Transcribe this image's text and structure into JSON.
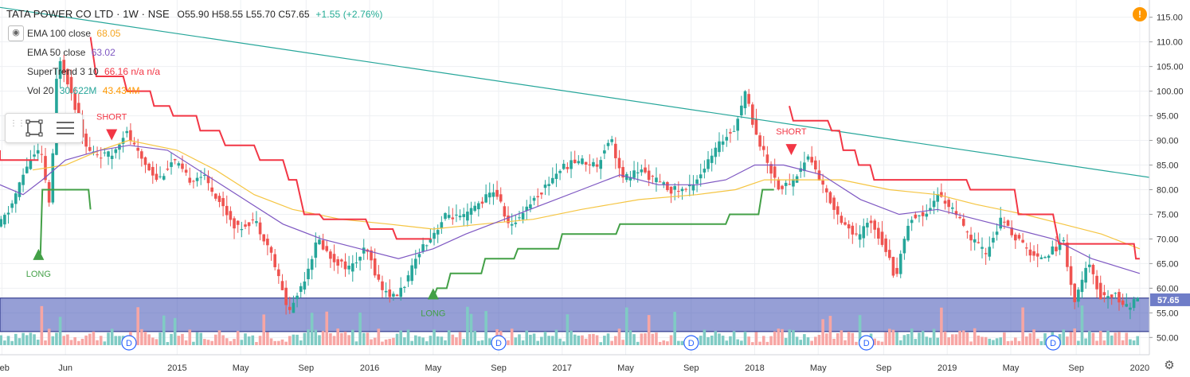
{
  "header": {
    "symbol": "TATA POWER CO LTD · 1W · NSE",
    "ohlc": "O55.90  H58.55  L55.70  C57.65",
    "change": "+1.55 (+2.76%)"
  },
  "indicators": [
    {
      "label": "EMA 100 close",
      "value": "68.05",
      "color": "#f5a623"
    },
    {
      "label": "EMA 50 close",
      "value": "63.02",
      "color": "#7e57c2"
    },
    {
      "label": "SuperTrend 3 10",
      "value": "66.16  n/a  n/a",
      "color": "#f23645"
    },
    {
      "label": "Vol 20",
      "value": "30.622M",
      "value2": "43.434M",
      "color": "#26a69a",
      "color2": "#ff9800"
    }
  ],
  "icons": {
    "alert": "!",
    "settings": "⚙",
    "visibility": "◉"
  },
  "colors": {
    "up": "#26a69a",
    "down": "#ef5350",
    "trendline": "#26a69a",
    "ema100": "#f5c542",
    "ema50": "#7e57c2",
    "st_down": "#f23645",
    "st_up": "#43a047",
    "zone": "#3f51b5",
    "vol_up": "#80cbc4",
    "vol_down": "#f7a6a4"
  },
  "chart_data": {
    "type": "candlestick",
    "title": "TATA POWER CO LTD · 1W · NSE",
    "ylim": [
      46.5,
      118.5
    ],
    "y_ticks": [
      50,
      55,
      60,
      65,
      70,
      75,
      80,
      85,
      90,
      95,
      100,
      105,
      110,
      115
    ],
    "y_tick_labels": [
      "50.00",
      "55.00",
      "60.00",
      "65.00",
      "70.00",
      "75.00",
      "80.00",
      "85.00",
      "90.00",
      "95.00",
      "100.00",
      "105.00",
      "110.00",
      "115.00"
    ],
    "x_range": [
      2014.08,
      2020.05
    ],
    "x_ticks": [
      {
        "x": 2014.09,
        "label": "Feb"
      },
      {
        "x": 2014.42,
        "label": "Jun"
      },
      {
        "x": 2015.0,
        "label": "2015"
      },
      {
        "x": 2015.33,
        "label": "May"
      },
      {
        "x": 2015.67,
        "label": "Sep"
      },
      {
        "x": 2016.0,
        "label": "2016"
      },
      {
        "x": 2016.33,
        "label": "May"
      },
      {
        "x": 2016.67,
        "label": "Sep"
      },
      {
        "x": 2017.0,
        "label": "2017"
      },
      {
        "x": 2017.33,
        "label": "May"
      },
      {
        "x": 2017.67,
        "label": "Sep"
      },
      {
        "x": 2018.0,
        "label": "2018"
      },
      {
        "x": 2018.33,
        "label": "May"
      },
      {
        "x": 2018.67,
        "label": "Sep"
      },
      {
        "x": 2019.0,
        "label": "2019"
      },
      {
        "x": 2019.33,
        "label": "May"
      },
      {
        "x": 2019.67,
        "label": "Sep"
      },
      {
        "x": 2020.0,
        "label": "2020"
      }
    ],
    "last_price": 57.65,
    "last_price_label": "57.65",
    "price_path": [
      [
        2014.08,
        72
      ],
      [
        2014.15,
        76
      ],
      [
        2014.25,
        86
      ],
      [
        2014.31,
        88
      ],
      [
        2014.36,
        76
      ],
      [
        2014.4,
        108
      ],
      [
        2014.46,
        101
      ],
      [
        2014.55,
        88
      ],
      [
        2014.62,
        87
      ],
      [
        2014.68,
        87
      ],
      [
        2014.75,
        92
      ],
      [
        2014.82,
        87
      ],
      [
        2014.92,
        82
      ],
      [
        2015.0,
        86
      ],
      [
        2015.08,
        82
      ],
      [
        2015.15,
        83
      ],
      [
        2015.25,
        77
      ],
      [
        2015.33,
        72
      ],
      [
        2015.42,
        74
      ],
      [
        2015.5,
        68
      ],
      [
        2015.6,
        55
      ],
      [
        2015.68,
        62
      ],
      [
        2015.75,
        70
      ],
      [
        2015.82,
        66
      ],
      [
        2015.92,
        64
      ],
      [
        2016.0,
        68
      ],
      [
        2016.08,
        60
      ],
      [
        2016.15,
        58
      ],
      [
        2016.22,
        62
      ],
      [
        2016.28,
        68
      ],
      [
        2016.33,
        70
      ],
      [
        2016.42,
        75
      ],
      [
        2016.5,
        74
      ],
      [
        2016.58,
        77
      ],
      [
        2016.67,
        80
      ],
      [
        2016.75,
        72
      ],
      [
        2016.82,
        76
      ],
      [
        2016.92,
        80
      ],
      [
        2017.0,
        84
      ],
      [
        2017.1,
        86
      ],
      [
        2017.2,
        85
      ],
      [
        2017.27,
        91
      ],
      [
        2017.33,
        82
      ],
      [
        2017.42,
        84
      ],
      [
        2017.5,
        82
      ],
      [
        2017.58,
        80
      ],
      [
        2017.67,
        80
      ],
      [
        2017.75,
        84
      ],
      [
        2017.85,
        90
      ],
      [
        2017.92,
        93
      ],
      [
        2017.97,
        100
      ],
      [
        2018.02,
        92
      ],
      [
        2018.08,
        86
      ],
      [
        2018.15,
        80
      ],
      [
        2018.22,
        82
      ],
      [
        2018.3,
        87
      ],
      [
        2018.38,
        80
      ],
      [
        2018.45,
        75
      ],
      [
        2018.55,
        70
      ],
      [
        2018.62,
        74
      ],
      [
        2018.7,
        68
      ],
      [
        2018.75,
        62
      ],
      [
        2018.82,
        74
      ],
      [
        2018.9,
        75
      ],
      [
        2018.97,
        79
      ],
      [
        2019.05,
        76
      ],
      [
        2019.12,
        71
      ],
      [
        2019.22,
        67
      ],
      [
        2019.3,
        74
      ],
      [
        2019.38,
        70
      ],
      [
        2019.48,
        66
      ],
      [
        2019.58,
        68
      ],
      [
        2019.62,
        70
      ],
      [
        2019.68,
        57
      ],
      [
        2019.75,
        65
      ],
      [
        2019.82,
        58
      ],
      [
        2019.88,
        59
      ],
      [
        2019.95,
        56
      ],
      [
        2020.0,
        57.65
      ]
    ],
    "ema100": [
      [
        2014.25,
        84
      ],
      [
        2014.42,
        85
      ],
      [
        2014.6,
        88
      ],
      [
        2014.75,
        90
      ],
      [
        2015.0,
        88
      ],
      [
        2015.2,
        84
      ],
      [
        2015.4,
        79
      ],
      [
        2015.6,
        76
      ],
      [
        2015.85,
        74
      ],
      [
        2016.1,
        73
      ],
      [
        2016.33,
        72
      ],
      [
        2016.58,
        73
      ],
      [
        2016.85,
        74
      ],
      [
        2017.1,
        76
      ],
      [
        2017.4,
        78
      ],
      [
        2017.7,
        79
      ],
      [
        2017.9,
        80
      ],
      [
        2018.05,
        82
      ],
      [
        2018.25,
        82
      ],
      [
        2018.45,
        82
      ],
      [
        2018.7,
        80
      ],
      [
        2018.95,
        79
      ],
      [
        2019.15,
        77
      ],
      [
        2019.4,
        75
      ],
      [
        2019.6,
        73
      ],
      [
        2019.8,
        71
      ],
      [
        2020.0,
        68
      ]
    ],
    "ema50": [
      [
        2014.08,
        81
      ],
      [
        2014.2,
        79
      ],
      [
        2014.3,
        82
      ],
      [
        2014.42,
        86
      ],
      [
        2014.6,
        88
      ],
      [
        2014.75,
        89
      ],
      [
        2014.95,
        88
      ],
      [
        2015.15,
        83
      ],
      [
        2015.35,
        78
      ],
      [
        2015.55,
        73
      ],
      [
        2015.75,
        70
      ],
      [
        2015.95,
        68
      ],
      [
        2016.15,
        66
      ],
      [
        2016.33,
        68
      ],
      [
        2016.5,
        71
      ],
      [
        2016.7,
        74
      ],
      [
        2016.9,
        77
      ],
      [
        2017.1,
        80
      ],
      [
        2017.3,
        83
      ],
      [
        2017.5,
        81
      ],
      [
        2017.7,
        81
      ],
      [
        2017.85,
        82
      ],
      [
        2018.0,
        85
      ],
      [
        2018.15,
        85
      ],
      [
        2018.35,
        83
      ],
      [
        2018.55,
        78
      ],
      [
        2018.75,
        75
      ],
      [
        2018.95,
        76
      ],
      [
        2019.15,
        74
      ],
      [
        2019.35,
        72
      ],
      [
        2019.55,
        70
      ],
      [
        2019.75,
        66
      ],
      [
        2020.0,
        63
      ]
    ],
    "supertrend_down": [
      [
        [
          2014.08,
          88
        ],
        [
          2014.08,
          86
        ],
        [
          2014.28,
          86
        ]
      ],
      [
        [
          2014.55,
          111
        ],
        [
          2014.58,
          103
        ],
        [
          2014.72,
          103
        ],
        [
          2014.74,
          100
        ],
        [
          2014.86,
          100
        ],
        [
          2014.88,
          97
        ],
        [
          2014.96,
          97
        ],
        [
          2014.98,
          95
        ],
        [
          2015.1,
          95
        ],
        [
          2015.12,
          92
        ],
        [
          2015.22,
          92
        ],
        [
          2015.25,
          89
        ],
        [
          2015.4,
          89
        ],
        [
          2015.43,
          86
        ],
        [
          2015.55,
          86
        ],
        [
          2015.58,
          82
        ],
        [
          2015.62,
          82
        ],
        [
          2015.66,
          75
        ],
        [
          2015.74,
          75
        ],
        [
          2015.76,
          74
        ],
        [
          2015.98,
          74
        ],
        [
          2016.0,
          72
        ],
        [
          2016.12,
          72
        ],
        [
          2016.14,
          70
        ],
        [
          2016.32,
          70
        ]
      ],
      [
        [
          2018.18,
          97
        ],
        [
          2018.2,
          94
        ],
        [
          2018.38,
          94
        ],
        [
          2018.4,
          92
        ],
        [
          2018.44,
          92
        ],
        [
          2018.46,
          88
        ],
        [
          2018.52,
          88
        ],
        [
          2018.54,
          85
        ],
        [
          2018.6,
          85
        ],
        [
          2018.62,
          82
        ],
        [
          2019.1,
          82
        ],
        [
          2019.12,
          80
        ],
        [
          2019.35,
          80
        ],
        [
          2019.37,
          75
        ],
        [
          2019.55,
          75
        ],
        [
          2019.58,
          69
        ],
        [
          2019.97,
          69
        ],
        [
          2019.98,
          66
        ],
        [
          2020.0,
          66
        ]
      ]
    ],
    "supertrend_up": [
      [
        [
          2014.29,
          67
        ],
        [
          2014.3,
          80
        ],
        [
          2014.54,
          80
        ],
        [
          2014.55,
          76
        ]
      ],
      [
        [
          2016.33,
          58
        ],
        [
          2016.35,
          60
        ],
        [
          2016.4,
          60
        ],
        [
          2016.42,
          63
        ],
        [
          2016.58,
          63
        ],
        [
          2016.6,
          66
        ],
        [
          2016.75,
          66
        ],
        [
          2016.77,
          68
        ],
        [
          2016.98,
          68
        ],
        [
          2017.0,
          71
        ],
        [
          2017.28,
          71
        ],
        [
          2017.3,
          73
        ],
        [
          2017.85,
          73
        ],
        [
          2017.87,
          75
        ],
        [
          2018.02,
          75
        ],
        [
          2018.04,
          80
        ],
        [
          2018.1,
          80
        ]
      ]
    ],
    "signals": [
      {
        "type": "LONG",
        "x": 2014.28,
        "y": 68
      },
      {
        "type": "SHORT",
        "x": 2014.66,
        "y": 90
      },
      {
        "type": "LONG",
        "x": 2016.33,
        "y": 60
      },
      {
        "type": "SHORT",
        "x": 2018.19,
        "y": 87
      }
    ],
    "trendline": [
      [
        2014.08,
        117
      ],
      [
        2020.05,
        82.5
      ]
    ],
    "zone": [
      51.2,
      58.0
    ],
    "dividends": [
      2014.75,
      2016.67,
      2017.67,
      2018.58,
      2019.55
    ],
    "dividend_label": "D"
  }
}
